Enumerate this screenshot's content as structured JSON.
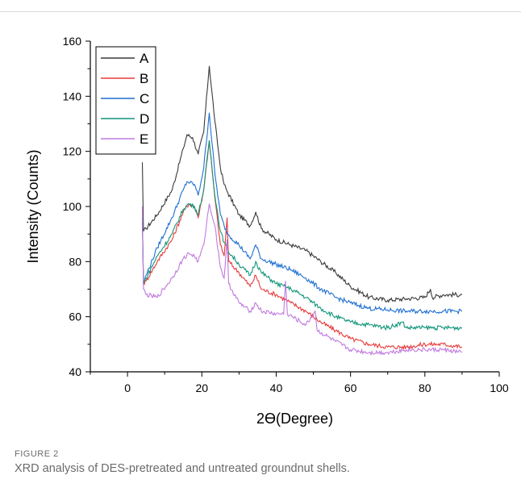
{
  "figure": {
    "label": "FIGURE 2",
    "caption": "XRD analysis of DES-pretreated and untreated groundnut shells."
  },
  "chart_data": {
    "type": "line",
    "xlabel": "2ϴ(Degree)",
    "ylabel": "Intensity (Counts)",
    "xlim": [
      -10,
      100
    ],
    "ylim": [
      40,
      160
    ],
    "xticks": [
      0,
      20,
      40,
      60,
      80,
      100
    ],
    "yticks": [
      40,
      60,
      80,
      100,
      120,
      140,
      160
    ],
    "grid": false,
    "legend_position": "top-left",
    "series": [
      {
        "name": "A",
        "color": "#3a3a3a",
        "x": [
          4,
          4.3,
          5,
          8,
          12,
          15,
          16,
          17.5,
          19,
          20.5,
          22,
          23.5,
          25,
          26,
          27,
          30,
          33,
          34.5,
          36,
          40,
          44,
          48,
          52,
          56,
          60,
          65,
          70,
          75,
          80,
          81.5,
          82,
          85,
          90
        ],
        "y": [
          116,
          91,
          92,
          97,
          106,
          121,
          126,
          125,
          119,
          127,
          151,
          131,
          114,
          108,
          105,
          97,
          93,
          98,
          92,
          88,
          86,
          84,
          80,
          76,
          71,
          67,
          66,
          66.5,
          67,
          70,
          67,
          68,
          68
        ]
      },
      {
        "name": "B",
        "color": "#e83a3a",
        "x": [
          4,
          4.3,
          5,
          8,
          12,
          15,
          16.5,
          18,
          19,
          20.5,
          22,
          23.5,
          25,
          26,
          26.8,
          27.2,
          30,
          33,
          34.5,
          36,
          40,
          44,
          48,
          52,
          56,
          60,
          65,
          70,
          75,
          80,
          85,
          90
        ],
        "y": [
          96,
          72,
          73,
          80,
          88,
          98,
          101,
          100,
          96,
          106,
          124,
          103,
          86,
          82,
          96,
          80,
          76,
          71,
          75,
          70,
          68,
          65,
          62,
          58,
          55,
          52,
          50,
          49,
          49,
          50,
          50,
          49
        ]
      },
      {
        "name": "C",
        "color": "#1f6fd1",
        "x": [
          4,
          4.3,
          5,
          8,
          12,
          15,
          16,
          18,
          19,
          20.5,
          22,
          23.5,
          25,
          26,
          27,
          30,
          33,
          34.5,
          36,
          40,
          44,
          48,
          52,
          56,
          60,
          65,
          70,
          75,
          80,
          85,
          90
        ],
        "y": [
          96,
          72,
          75,
          85,
          96,
          106,
          109,
          108,
          104,
          114,
          134,
          112,
          97,
          93,
          90,
          86,
          81,
          86,
          81,
          79,
          77,
          74,
          70,
          67,
          65,
          63,
          62.5,
          62,
          62,
          62,
          62
        ]
      },
      {
        "name": "D",
        "color": "#10967a",
        "x": [
          4,
          4.3,
          5,
          8,
          12,
          15,
          16.5,
          18,
          19,
          20.5,
          22,
          23.5,
          25,
          26,
          27,
          30,
          33,
          34.5,
          36,
          40,
          44,
          48,
          52,
          56,
          60,
          65,
          70,
          74,
          75,
          80,
          85,
          90
        ],
        "y": [
          96,
          72,
          74,
          82,
          90,
          99,
          101,
          100,
          97,
          106,
          124,
          104,
          91,
          87,
          84,
          79,
          75,
          80,
          76,
          72,
          70,
          67,
          63,
          60,
          58,
          57,
          56,
          58,
          56,
          56,
          56,
          56
        ]
      },
      {
        "name": "E",
        "color": "#c07adf",
        "x": [
          4,
          4.3,
          5,
          8,
          12,
          15,
          16.5,
          18,
          19,
          20.5,
          22,
          23.5,
          25,
          26,
          26.8,
          27.2,
          30,
          33,
          34.5,
          36,
          40,
          42,
          42.5,
          43,
          48,
          50.5,
          51,
          56,
          60,
          65,
          70,
          75,
          80,
          85,
          90
        ],
        "y": [
          100,
          70,
          68,
          67,
          74,
          81,
          83,
          82,
          80,
          86,
          101,
          93,
          78,
          74,
          88,
          72,
          65,
          62,
          65,
          62,
          61,
          61,
          73,
          61,
          57,
          62,
          55,
          51,
          48,
          47,
          47,
          48,
          48,
          48,
          47
        ]
      }
    ]
  }
}
